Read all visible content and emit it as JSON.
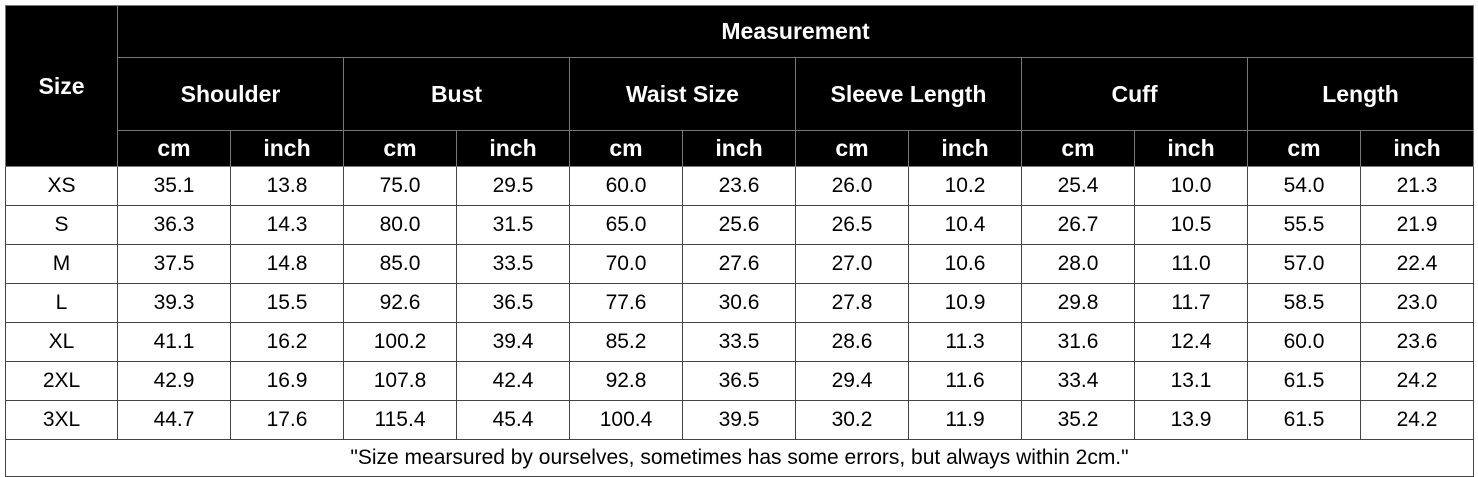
{
  "header": {
    "size": "Size",
    "measurement": "Measurement",
    "groups": [
      "Shoulder",
      "Bust",
      "Waist Size",
      "Sleeve Length",
      "Cuff",
      "Length"
    ],
    "units": [
      "cm",
      "inch",
      "cm",
      "inch",
      "cm",
      "inch",
      "cm",
      "inch",
      "cm",
      "inch",
      "cm",
      "inch"
    ]
  },
  "table": {
    "rows": [
      {
        "size": "XS",
        "values": [
          "35.1",
          "13.8",
          "75.0",
          "29.5",
          "60.0",
          "23.6",
          "26.0",
          "10.2",
          "25.4",
          "10.0",
          "54.0",
          "21.3"
        ]
      },
      {
        "size": "S",
        "values": [
          "36.3",
          "14.3",
          "80.0",
          "31.5",
          "65.0",
          "25.6",
          "26.5",
          "10.4",
          "26.7",
          "10.5",
          "55.5",
          "21.9"
        ]
      },
      {
        "size": "M",
        "values": [
          "37.5",
          "14.8",
          "85.0",
          "33.5",
          "70.0",
          "27.6",
          "27.0",
          "10.6",
          "28.0",
          "11.0",
          "57.0",
          "22.4"
        ]
      },
      {
        "size": "L",
        "values": [
          "39.3",
          "15.5",
          "92.6",
          "36.5",
          "77.6",
          "30.6",
          "27.8",
          "10.9",
          "29.8",
          "11.7",
          "58.5",
          "23.0"
        ]
      },
      {
        "size": "XL",
        "values": [
          "41.1",
          "16.2",
          "100.2",
          "39.4",
          "85.2",
          "33.5",
          "28.6",
          "11.3",
          "31.6",
          "12.4",
          "60.0",
          "23.6"
        ]
      },
      {
        "size": "2XL",
        "values": [
          "42.9",
          "16.9",
          "107.8",
          "42.4",
          "92.8",
          "36.5",
          "29.4",
          "11.6",
          "33.4",
          "13.1",
          "61.5",
          "24.2"
        ]
      },
      {
        "size": "3XL",
        "values": [
          "44.7",
          "17.6",
          "115.4",
          "45.4",
          "100.4",
          "39.5",
          "30.2",
          "11.9",
          "35.2",
          "13.9",
          "61.5",
          "24.2"
        ]
      }
    ]
  },
  "footer": {
    "note": "\"Size mearsured by ourselves, sometimes has some errors, but always within 2cm.\""
  }
}
